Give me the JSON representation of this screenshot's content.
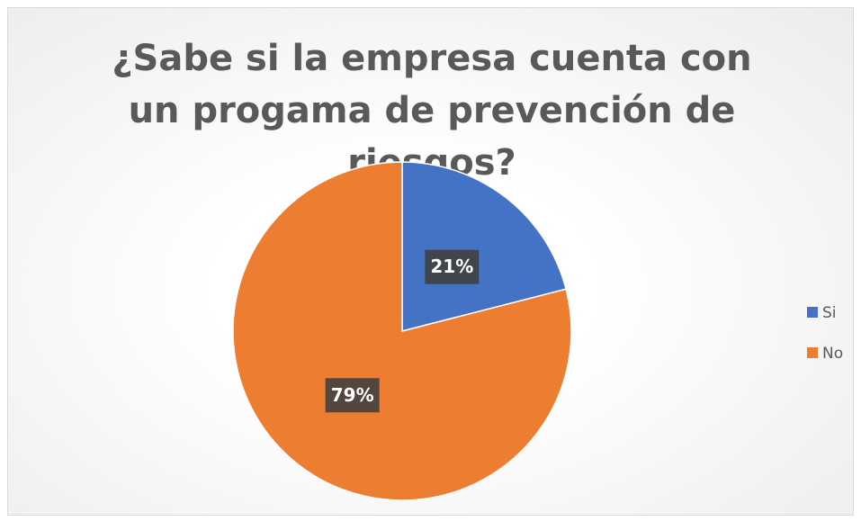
{
  "chart_data": {
    "type": "pie",
    "title": "¿Sabe si la empresa cuenta con un progama de prevención de riesgos?",
    "categories": [
      "Si",
      "No"
    ],
    "values": [
      21,
      79
    ],
    "value_labels": [
      "21%",
      "79%"
    ],
    "colors": [
      "#4472c4",
      "#ed7d31"
    ],
    "legend": "right"
  }
}
